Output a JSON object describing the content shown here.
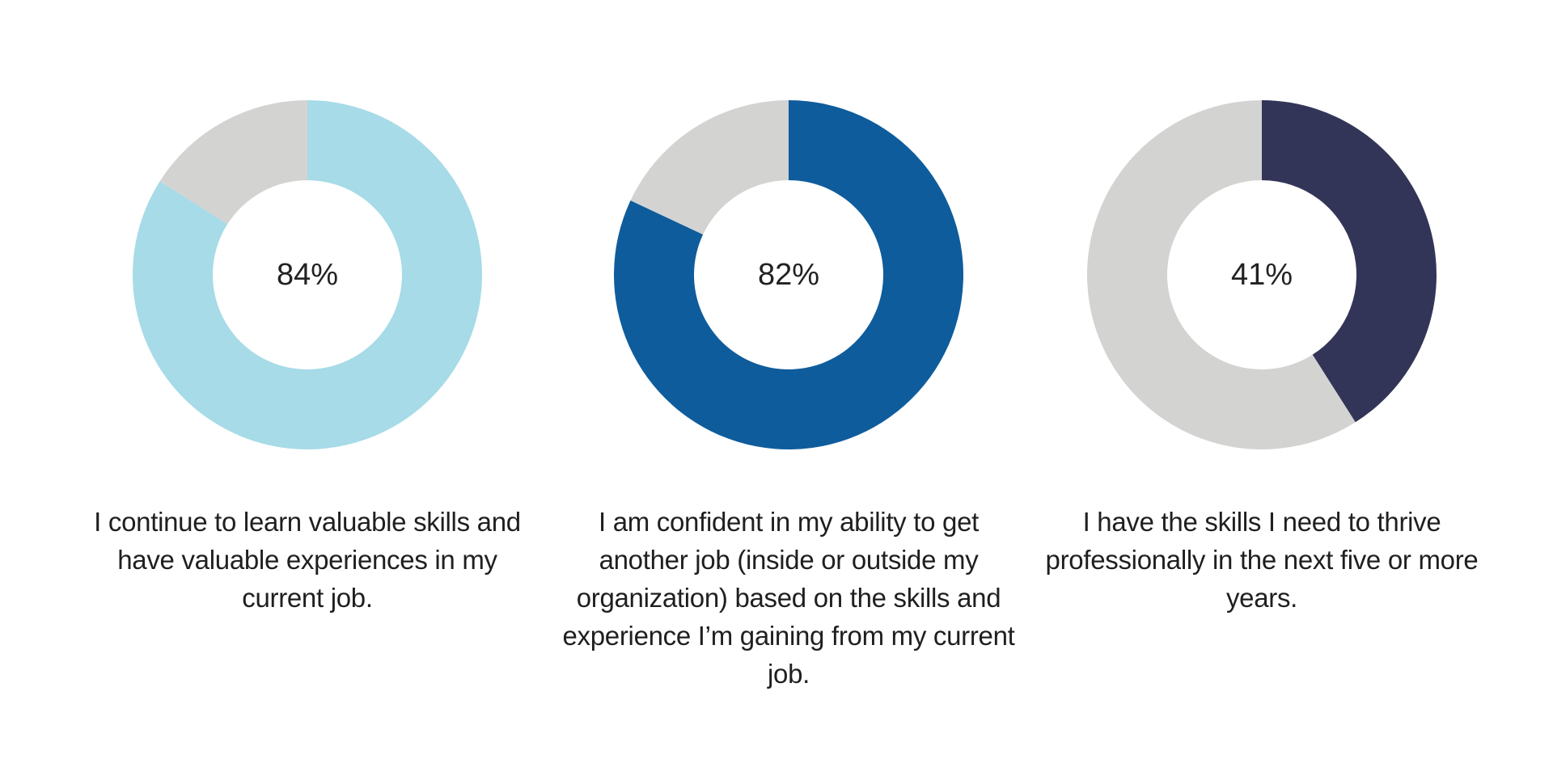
{
  "chart_data": [
    {
      "type": "pie",
      "title": "",
      "value_label": "84%",
      "values": [
        84,
        16
      ],
      "colors": [
        "#a6dbe7",
        "#d3d3d2"
      ],
      "caption": "I continue to learn valuable skills and have valuable experiences in my current job."
    },
    {
      "type": "pie",
      "title": "",
      "value_label": "82%",
      "values": [
        82,
        18
      ],
      "colors": [
        "#0e5c9c",
        "#d3d3d2"
      ],
      "caption": "I am confident in my ability to get another job (inside or outside my organization) based on the skills and experience I’m gaining from my current job."
    },
    {
      "type": "pie",
      "title": "",
      "value_label": "41%",
      "values": [
        41,
        59
      ],
      "colors": [
        "#333558",
        "#d3d3d2"
      ],
      "caption": "I have the skills I need to thrive professionally in the next five or more years."
    }
  ]
}
